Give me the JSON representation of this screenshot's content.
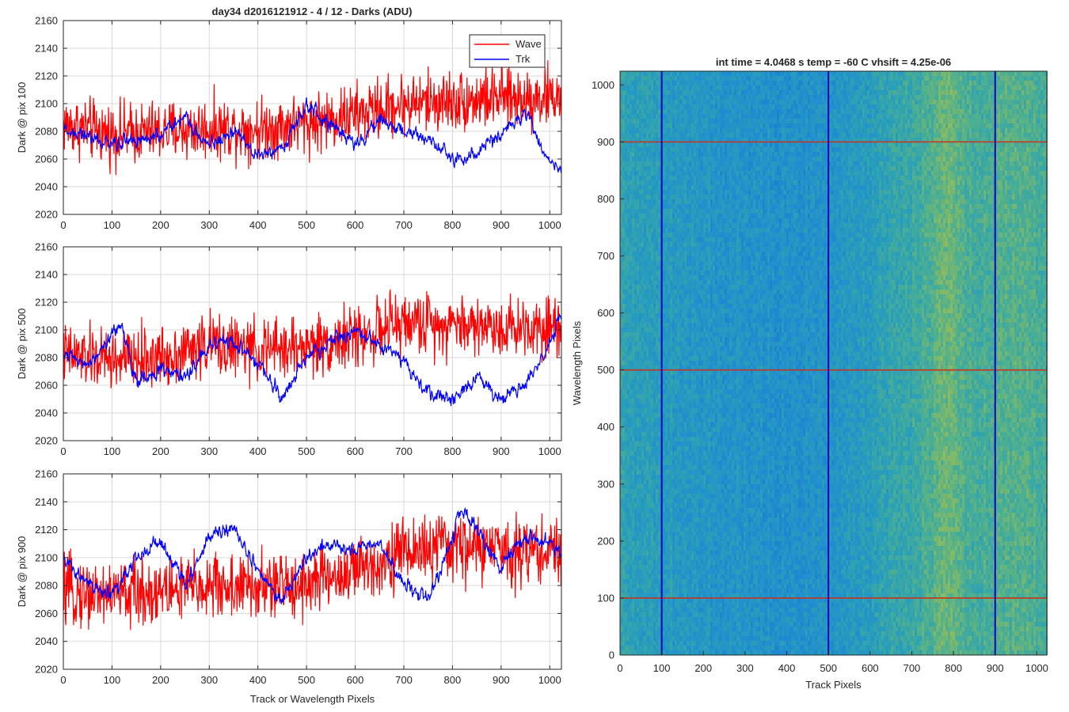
{
  "figure": {
    "background": "#ffffff"
  },
  "colors": {
    "wave": "#ff0000",
    "trk": "#0000ff",
    "hline": "#c8321e",
    "vline": "#0000c8"
  },
  "chart_data": [
    {
      "type": "line",
      "title": "day34 d2016121912 - 4 / 12 - Darks (ADU)",
      "ylabel": "Dark @ pix 100",
      "xlabel": "",
      "xlim": [
        0,
        1024
      ],
      "ylim": [
        2020,
        2160
      ],
      "xticks": [
        "0",
        "100",
        "200",
        "300",
        "400",
        "500",
        "600",
        "700",
        "800",
        "900",
        "1000"
      ],
      "yticks": [
        "2020",
        "2040",
        "2060",
        "2080",
        "2100",
        "2120",
        "2140",
        "2160"
      ],
      "grid": true,
      "legend": {
        "location": "top-right",
        "entries": [
          "Wave",
          "Trk"
        ]
      },
      "series": [
        {
          "name": "Wave",
          "color": "#ff0000",
          "x_range": [
            0,
            1024
          ],
          "trend": [
            [
              0,
              2085
            ],
            [
              100,
              2078
            ],
            [
              200,
              2080
            ],
            [
              300,
              2082
            ],
            [
              400,
              2082
            ],
            [
              500,
              2086
            ],
            [
              600,
              2092
            ],
            [
              700,
              2100
            ],
            [
              800,
              2102
            ],
            [
              900,
              2104
            ],
            [
              1024,
              2105
            ]
          ],
          "noise": 11
        },
        {
          "name": "Trk",
          "color": "#0000ff",
          "x_range": [
            0,
            1024
          ],
          "trend": [
            [
              0,
              2082
            ],
            [
              50,
              2075
            ],
            [
              100,
              2070
            ],
            [
              150,
              2074
            ],
            [
              200,
              2078
            ],
            [
              250,
              2090
            ],
            [
              300,
              2070
            ],
            [
              350,
              2080
            ],
            [
              400,
              2062
            ],
            [
              450,
              2068
            ],
            [
              500,
              2098
            ],
            [
              550,
              2085
            ],
            [
              600,
              2070
            ],
            [
              650,
              2088
            ],
            [
              700,
              2080
            ],
            [
              750,
              2075
            ],
            [
              800,
              2060
            ],
            [
              850,
              2065
            ],
            [
              900,
              2078
            ],
            [
              950,
              2095
            ],
            [
              980,
              2070
            ],
            [
              1024,
              2050
            ]
          ],
          "noise": 5
        }
      ]
    },
    {
      "type": "line",
      "title": "",
      "ylabel": "Dark @ pix 500",
      "xlabel": "",
      "xlim": [
        0,
        1024
      ],
      "ylim": [
        2020,
        2160
      ],
      "xticks": [
        "0",
        "100",
        "200",
        "300",
        "400",
        "500",
        "600",
        "700",
        "800",
        "900",
        "1000"
      ],
      "yticks": [
        "2020",
        "2040",
        "2060",
        "2080",
        "2100",
        "2120",
        "2140",
        "2160"
      ],
      "grid": true,
      "series": [
        {
          "name": "Wave",
          "color": "#ff0000",
          "x_range": [
            0,
            1024
          ],
          "trend": [
            [
              0,
              2082
            ],
            [
              100,
              2078
            ],
            [
              200,
              2080
            ],
            [
              300,
              2090
            ],
            [
              400,
              2085
            ],
            [
              500,
              2088
            ],
            [
              600,
              2095
            ],
            [
              700,
              2105
            ],
            [
              800,
              2105
            ],
            [
              900,
              2102
            ],
            [
              1024,
              2104
            ]
          ],
          "noise": 11
        },
        {
          "name": "Trk",
          "color": "#0000ff",
          "x_range": [
            0,
            1024
          ],
          "trend": [
            [
              0,
              2082
            ],
            [
              50,
              2072
            ],
            [
              100,
              2095
            ],
            [
              120,
              2105
            ],
            [
              150,
              2062
            ],
            [
              200,
              2070
            ],
            [
              250,
              2066
            ],
            [
              300,
              2088
            ],
            [
              350,
              2092
            ],
            [
              400,
              2075
            ],
            [
              450,
              2052
            ],
            [
              500,
              2080
            ],
            [
              550,
              2092
            ],
            [
              600,
              2100
            ],
            [
              650,
              2088
            ],
            [
              700,
              2078
            ],
            [
              750,
              2055
            ],
            [
              800,
              2050
            ],
            [
              850,
              2068
            ],
            [
              900,
              2050
            ],
            [
              950,
              2062
            ],
            [
              1000,
              2090
            ],
            [
              1024,
              2108
            ]
          ],
          "noise": 5
        }
      ]
    },
    {
      "type": "line",
      "title": "",
      "ylabel": "Dark @ pix 900",
      "xlabel": "Track or Wavelength Pixels",
      "xlim": [
        0,
        1024
      ],
      "ylim": [
        2020,
        2160
      ],
      "xticks": [
        "0",
        "100",
        "200",
        "300",
        "400",
        "500",
        "600",
        "700",
        "800",
        "900",
        "1000"
      ],
      "yticks": [
        "2020",
        "2040",
        "2060",
        "2080",
        "2100",
        "2120",
        "2140",
        "2160"
      ],
      "grid": true,
      "series": [
        {
          "name": "Wave",
          "color": "#ff0000",
          "x_range": [
            0,
            1024
          ],
          "trend": [
            [
              0,
              2075
            ],
            [
              100,
              2074
            ],
            [
              200,
              2076
            ],
            [
              300,
              2080
            ],
            [
              400,
              2078
            ],
            [
              500,
              2082
            ],
            [
              600,
              2090
            ],
            [
              700,
              2105
            ],
            [
              800,
              2108
            ],
            [
              900,
              2106
            ],
            [
              1024,
              2104
            ]
          ],
          "noise": 12
        },
        {
          "name": "Trk",
          "color": "#0000ff",
          "x_range": [
            0,
            1024
          ],
          "trend": [
            [
              0,
              2100
            ],
            [
              50,
              2082
            ],
            [
              100,
              2072
            ],
            [
              150,
              2100
            ],
            [
              200,
              2112
            ],
            [
              250,
              2080
            ],
            [
              300,
              2115
            ],
            [
              350,
              2122
            ],
            [
              400,
              2090
            ],
            [
              450,
              2068
            ],
            [
              500,
              2100
            ],
            [
              550,
              2110
            ],
            [
              600,
              2105
            ],
            [
              650,
              2112
            ],
            [
              700,
              2080
            ],
            [
              750,
              2070
            ],
            [
              800,
              2112
            ],
            [
              820,
              2135
            ],
            [
              850,
              2120
            ],
            [
              900,
              2092
            ],
            [
              950,
              2115
            ],
            [
              1000,
              2110
            ],
            [
              1024,
              2100
            ]
          ],
          "noise": 5
        }
      ]
    },
    {
      "type": "heatmap",
      "title": "int time = 4.0468 s    temp = -60 C    vhsift = 4.25e-06",
      "xlabel": "Track Pixels",
      "ylabel": "Wavelength Pixels",
      "xlim": [
        0,
        1024
      ],
      "ylim": [
        0,
        1024
      ],
      "xticks": [
        "0",
        "100",
        "200",
        "300",
        "400",
        "500",
        "600",
        "700",
        "800",
        "900",
        "1000"
      ],
      "yticks": [
        "0",
        "100",
        "200",
        "300",
        "400",
        "500",
        "600",
        "700",
        "800",
        "900",
        "1000"
      ],
      "colormap": [
        "#1b75c8",
        "#1e8ed0",
        "#2ba0b7",
        "#4fb08f",
        "#8fbb5e",
        "#b8c04a"
      ],
      "column_intensity": [
        [
          0,
          0.42
        ],
        [
          100,
          0.35
        ],
        [
          200,
          0.3
        ],
        [
          300,
          0.27
        ],
        [
          400,
          0.25
        ],
        [
          500,
          0.28
        ],
        [
          600,
          0.38
        ],
        [
          700,
          0.5
        ],
        [
          780,
          0.68
        ],
        [
          850,
          0.55
        ],
        [
          950,
          0.6
        ],
        [
          1024,
          0.55
        ]
      ],
      "horizontal_lines": [
        100,
        500,
        900
      ],
      "vertical_lines": [
        100,
        500,
        900
      ]
    }
  ]
}
